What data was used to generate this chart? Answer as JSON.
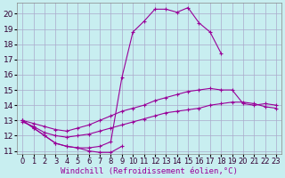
{
  "background_color": "#c8eef0",
  "grid_color": "#aaaacc",
  "line_color": "#990099",
  "xlabel": "Windchill (Refroidissement éolien,°C)",
  "xlabel_fontsize": 6.5,
  "xtick_fontsize": 6,
  "ytick_fontsize": 6.5,
  "xlim": [
    -0.5,
    23.5
  ],
  "ylim": [
    10.8,
    20.7
  ],
  "yticks": [
    11,
    12,
    13,
    14,
    15,
    16,
    17,
    18,
    19,
    20
  ],
  "xticks": [
    0,
    1,
    2,
    3,
    4,
    5,
    6,
    7,
    8,
    9,
    10,
    11,
    12,
    13,
    14,
    15,
    16,
    17,
    18,
    19,
    20,
    21,
    22,
    23
  ],
  "curves": [
    {
      "x": [
        0,
        1,
        2,
        3,
        4,
        5,
        6,
        7,
        8,
        9,
        10,
        11,
        12,
        13,
        14,
        15,
        16,
        17,
        18
      ],
      "y": [
        13.0,
        12.5,
        12.0,
        11.5,
        11.3,
        11.2,
        11.2,
        11.3,
        11.6,
        15.8,
        18.8,
        19.5,
        20.3,
        20.3,
        20.1,
        20.4,
        19.4,
        18.8,
        17.4
      ]
    },
    {
      "x": [
        0,
        1,
        2,
        3,
        4,
        5,
        6,
        7,
        8,
        9,
        10,
        11,
        12,
        13,
        14,
        15,
        16,
        17,
        18,
        19,
        20,
        21,
        22,
        23
      ],
      "y": [
        13.0,
        12.8,
        12.6,
        12.4,
        12.3,
        12.5,
        12.7,
        13.0,
        13.3,
        13.6,
        13.8,
        14.0,
        14.3,
        14.5,
        14.7,
        14.9,
        15.0,
        15.1,
        15.0,
        15.0,
        14.1,
        14.0,
        14.1,
        14.0
      ]
    },
    {
      "x": [
        0,
        1,
        2,
        3,
        4,
        5,
        6,
        7,
        8,
        9,
        10,
        11,
        12,
        13,
        14,
        15,
        16,
        17,
        18,
        19,
        20,
        21,
        22,
        23
      ],
      "y": [
        12.9,
        12.6,
        12.2,
        12.0,
        11.9,
        12.0,
        12.1,
        12.3,
        12.5,
        12.7,
        12.9,
        13.1,
        13.3,
        13.5,
        13.6,
        13.7,
        13.8,
        14.0,
        14.1,
        14.2,
        14.2,
        14.1,
        13.9,
        13.8
      ]
    },
    {
      "x": [
        0,
        1,
        2,
        3,
        4,
        5,
        6,
        7,
        8,
        9
      ],
      "y": [
        13.0,
        12.5,
        12.0,
        11.5,
        11.3,
        11.2,
        11.0,
        10.9,
        10.9,
        11.3
      ]
    }
  ]
}
